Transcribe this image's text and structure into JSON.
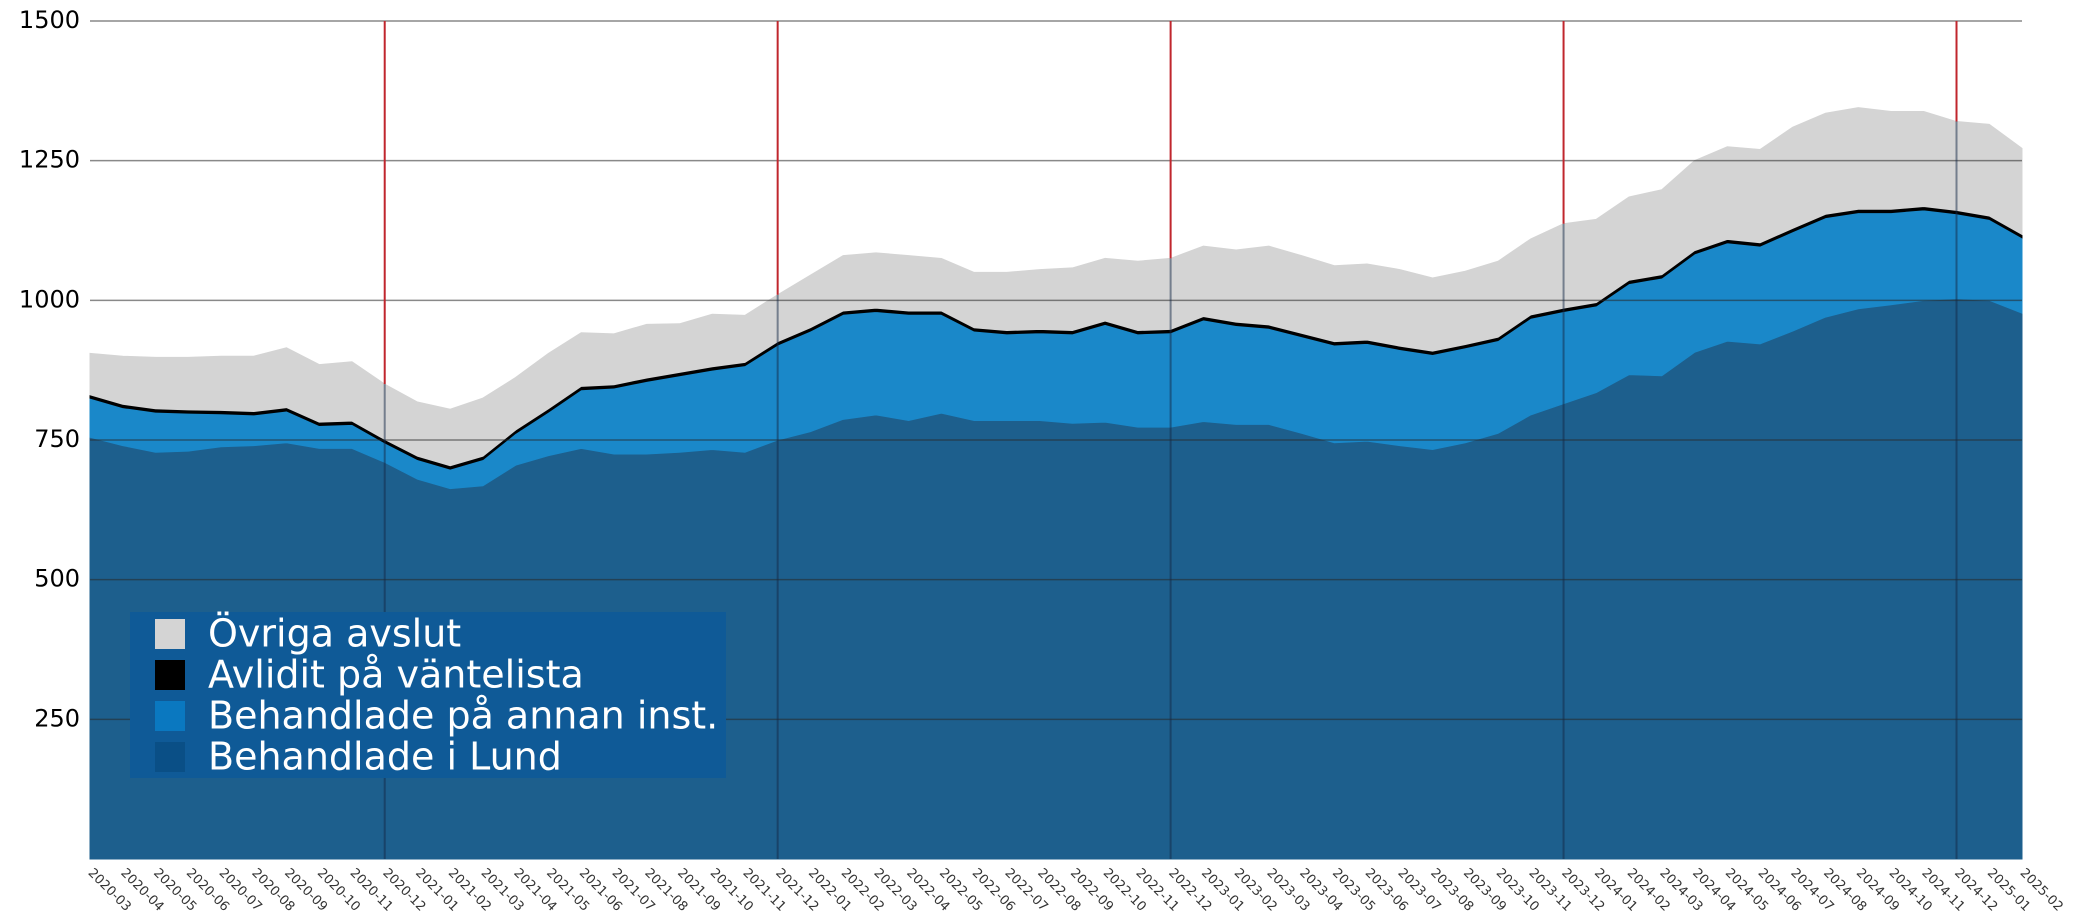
{
  "chart_data": {
    "type": "stacked_area",
    "categories": [
      "2020-03",
      "2020-04",
      "2020-05",
      "2020-06",
      "2020-07",
      "2020-08",
      "2020-09",
      "2020-10",
      "2020-11",
      "2020-12",
      "2021-01",
      "2021-02",
      "2021-03",
      "2021-04",
      "2021-05",
      "2021-06",
      "2021-07",
      "2021-08",
      "2021-09",
      "2021-10",
      "2021-11",
      "2021-12",
      "2022-01",
      "2022-02",
      "2022-03",
      "2022-04",
      "2022-05",
      "2022-06",
      "2022-07",
      "2022-08",
      "2022-09",
      "2022-10",
      "2022-11",
      "2022-12",
      "2023-01",
      "2023-02",
      "2023-03",
      "2023-04",
      "2023-05",
      "2023-06",
      "2023-07",
      "2023-08",
      "2023-09",
      "2023-10",
      "2023-11",
      "2023-12",
      "2024-01",
      "2024-02",
      "2024-03",
      "2024-04",
      "2024-05",
      "2024-06",
      "2024-07",
      "2024-08",
      "2024-09",
      "2024-10",
      "2024-11",
      "2024-12",
      "2025-01",
      "2025-02"
    ],
    "series": [
      {
        "name": "Behandlade i Lund",
        "color": "#1d5f8d",
        "legend_color": "#0a4f86",
        "values": [
          755,
          740,
          728,
          730,
          738,
          740,
          745,
          735,
          735,
          710,
          680,
          663,
          668,
          705,
          722,
          735,
          725,
          725,
          728,
          733,
          728,
          750,
          765,
          787,
          795,
          785,
          798,
          785,
          785,
          785,
          780,
          782,
          773,
          773,
          783,
          778,
          778,
          762,
          745,
          748,
          740,
          733,
          745,
          762,
          795,
          815,
          835,
          867,
          865,
          907,
          927,
          922,
          945,
          970,
          985,
          992,
          1000,
          1003,
          1000,
          977
        ]
      },
      {
        "name": "Behandlade på annan inst.",
        "color": "#1a88c9",
        "legend_color": "#0a78c0",
        "values": [
          70,
          68,
          72,
          68,
          59,
          55,
          57,
          41,
          43,
          35,
          35,
          35,
          47,
          57,
          78,
          105,
          118,
          130,
          137,
          142,
          155,
          170,
          180,
          188,
          185,
          190,
          177,
          160,
          155,
          157,
          160,
          175,
          167,
          169,
          182,
          177,
          172,
          173,
          175,
          175,
          172,
          170,
          170,
          166,
          173,
          165,
          155,
          163,
          175,
          176,
          176,
          175,
          178,
          178,
          172,
          165,
          162,
          152,
          145,
          135
        ]
      },
      {
        "name": "Avlidit på väntelista",
        "color": "#000000",
        "legend_color": "#000000",
        "values": [
          6,
          6,
          6,
          6,
          6,
          6,
          6,
          6,
          6,
          6,
          6,
          6,
          6,
          6,
          6,
          6,
          6,
          6,
          6,
          6,
          6,
          6,
          6,
          6,
          6,
          6,
          6,
          6,
          6,
          6,
          6,
          6,
          6,
          6,
          6,
          6,
          6,
          6,
          6,
          6,
          6,
          6,
          6,
          6,
          6,
          6,
          6,
          6,
          6,
          6,
          6,
          6,
          6,
          6,
          6,
          6,
          6,
          6,
          6,
          6
        ]
      },
      {
        "name": "Övriga avslut",
        "color": "#d4d4d4",
        "legend_color": "#d4d4d4",
        "values": [
          74,
          86,
          92,
          94,
          97,
          99,
          107,
          103,
          106,
          99,
          97,
          101,
          104,
          94,
          99,
          96,
          91,
          96,
          87,
          94,
          84,
          84,
          94,
          99,
          99,
          99,
          94,
          99,
          104,
          107,
          112,
          112,
          124,
          127,
          126,
          129,
          141,
          139,
          136,
          136,
          137,
          131,
          131,
          136,
          136,
          151,
          149,
          149,
          152,
          161,
          166,
          167,
          181,
          181,
          182,
          175,
          170,
          159,
          164,
          154
        ]
      }
    ],
    "ylim": [
      0,
      1500
    ],
    "yticks": [
      250,
      500,
      750,
      1000,
      1250,
      1500
    ],
    "grid": true,
    "legend": "lower left"
  }
}
